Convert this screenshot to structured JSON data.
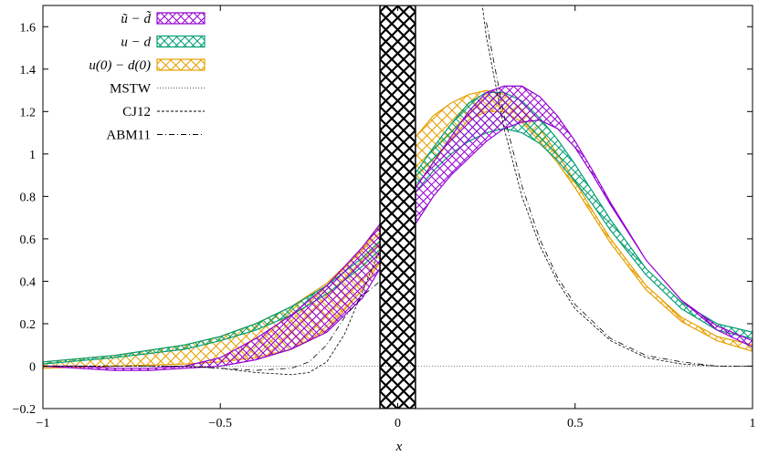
{
  "chart_data": {
    "type": "line",
    "title": "",
    "xlabel": "x",
    "ylabel": "",
    "xlim": [
      -1,
      1
    ],
    "ylim": [
      -0.2,
      1.7
    ],
    "grid": false,
    "legend_position": "top-left",
    "xticks": [
      -1,
      -0.5,
      0,
      0.5,
      1
    ],
    "xtick_labels": [
      "−1",
      "−0.5",
      "0",
      "0.5",
      "1"
    ],
    "yticks": [
      -0.2,
      0,
      0.2,
      0.4,
      0.6,
      0.8,
      1,
      1.2,
      1.4,
      1.6
    ],
    "ytick_labels": [
      "−0.2",
      "0",
      "0.2",
      "0.4",
      "0.6",
      "0.8",
      "1",
      "1.2",
      "1.4",
      "1.6"
    ],
    "excluded_region": {
      "x": [
        -0.05,
        0.05
      ],
      "description": "cross-hatched black band"
    },
    "bands": [
      {
        "name": "ũ − d̃",
        "legend_label": "ũ − d̃",
        "color": "#9400d3",
        "x": [
          -1.0,
          -0.9,
          -0.8,
          -0.7,
          -0.6,
          -0.5,
          -0.4,
          -0.3,
          -0.2,
          -0.1,
          -0.05,
          0.05,
          0.1,
          0.15,
          0.2,
          0.25,
          0.3,
          0.35,
          0.4,
          0.45,
          0.5,
          0.55,
          0.6,
          0.7,
          0.8,
          0.9,
          1.0
        ],
        "upper": [
          0.0,
          0.0,
          -0.01,
          -0.01,
          0.0,
          0.04,
          0.13,
          0.24,
          0.38,
          0.56,
          0.67,
          0.84,
          0.96,
          1.08,
          1.2,
          1.29,
          1.32,
          1.32,
          1.27,
          1.18,
          1.06,
          0.92,
          0.77,
          0.5,
          0.31,
          0.19,
          0.12
        ],
        "lower": [
          0.0,
          -0.01,
          -0.02,
          -0.02,
          -0.01,
          0.0,
          0.03,
          0.08,
          0.16,
          0.32,
          0.46,
          0.67,
          0.8,
          0.9,
          0.98,
          1.06,
          1.12,
          1.15,
          1.16,
          1.12,
          1.03,
          0.9,
          0.76,
          0.5,
          0.31,
          0.17,
          0.09
        ]
      },
      {
        "name": "u − d",
        "legend_label": "u − d",
        "color": "#009e73",
        "x": [
          -1.0,
          -0.8,
          -0.6,
          -0.5,
          -0.4,
          -0.3,
          -0.2,
          -0.1,
          -0.05,
          0.05,
          0.1,
          0.15,
          0.2,
          0.25,
          0.3,
          0.35,
          0.4,
          0.45,
          0.5,
          0.55,
          0.6,
          0.7,
          0.8,
          0.9,
          1.0
        ],
        "upper": [
          0.02,
          0.05,
          0.1,
          0.14,
          0.2,
          0.28,
          0.38,
          0.51,
          0.59,
          0.91,
          1.03,
          1.14,
          1.24,
          1.29,
          1.29,
          1.25,
          1.17,
          1.07,
          0.95,
          0.82,
          0.69,
          0.46,
          0.3,
          0.2,
          0.16
        ],
        "lower": [
          0.01,
          0.04,
          0.08,
          0.12,
          0.17,
          0.24,
          0.34,
          0.47,
          0.55,
          0.82,
          0.92,
          1.0,
          1.06,
          1.1,
          1.12,
          1.1,
          1.05,
          0.97,
          0.87,
          0.76,
          0.64,
          0.43,
          0.27,
          0.17,
          0.13
        ]
      },
      {
        "name": "u(0) − d(0)",
        "legend_label": "u(0) − d(0)",
        "color": "#e69f00",
        "x": [
          -1.0,
          -0.8,
          -0.6,
          -0.5,
          -0.4,
          -0.3,
          -0.2,
          -0.1,
          -0.05,
          0.05,
          0.1,
          0.15,
          0.2,
          0.25,
          0.3,
          0.35,
          0.4,
          0.45,
          0.5,
          0.55,
          0.6,
          0.7,
          0.8,
          0.9,
          1.0
        ],
        "upper": [
          0.02,
          0.05,
          0.1,
          0.14,
          0.2,
          0.28,
          0.39,
          0.55,
          0.66,
          1.08,
          1.18,
          1.24,
          1.28,
          1.3,
          1.28,
          1.21,
          1.12,
          1.0,
          0.87,
          0.73,
          0.6,
          0.38,
          0.23,
          0.14,
          0.1
        ],
        "lower": [
          -0.01,
          0.0,
          0.01,
          0.02,
          0.04,
          0.08,
          0.17,
          0.36,
          0.49,
          0.84,
          0.96,
          1.07,
          1.16,
          1.2,
          1.2,
          1.15,
          1.06,
          0.96,
          0.84,
          0.71,
          0.58,
          0.36,
          0.21,
          0.12,
          0.07
        ]
      }
    ],
    "series": [
      {
        "name": "MSTW",
        "legend_label": "MSTW",
        "style": "dotted",
        "x": [
          -1.0,
          0.0,
          1.0
        ],
        "values": [
          0.0,
          0.0,
          0.0
        ]
      },
      {
        "name": "CJ12",
        "legend_label": "CJ12",
        "style": "dashed",
        "x": [
          -1.0,
          -0.6,
          -0.5,
          -0.4,
          -0.3,
          -0.25,
          -0.2,
          -0.15,
          -0.1,
          -0.05,
          0.2,
          0.25,
          0.3,
          0.35,
          0.4,
          0.45,
          0.5,
          0.6,
          0.7,
          0.8,
          0.9,
          1.0
        ],
        "values": [
          0.0,
          0.0,
          -0.01,
          -0.03,
          -0.04,
          -0.03,
          0.02,
          0.15,
          0.35,
          0.55,
          2.2,
          1.55,
          1.12,
          0.8,
          0.57,
          0.4,
          0.27,
          0.12,
          0.04,
          0.01,
          0.0,
          0.0
        ]
      },
      {
        "name": "ABM11",
        "legend_label": "ABM11",
        "style": "dashdot",
        "x": [
          -1.0,
          -0.6,
          -0.5,
          -0.4,
          -0.3,
          -0.25,
          -0.2,
          -0.15,
          -0.1,
          -0.05,
          0.25,
          0.3,
          0.35,
          0.4,
          0.45,
          0.5,
          0.6,
          0.7,
          0.8,
          0.9,
          1.0
        ],
        "values": [
          0.0,
          0.0,
          -0.01,
          -0.02,
          -0.01,
          0.02,
          0.1,
          0.23,
          0.33,
          0.4,
          1.62,
          1.18,
          0.85,
          0.6,
          0.42,
          0.29,
          0.13,
          0.05,
          0.02,
          0.0,
          0.0
        ]
      }
    ]
  }
}
